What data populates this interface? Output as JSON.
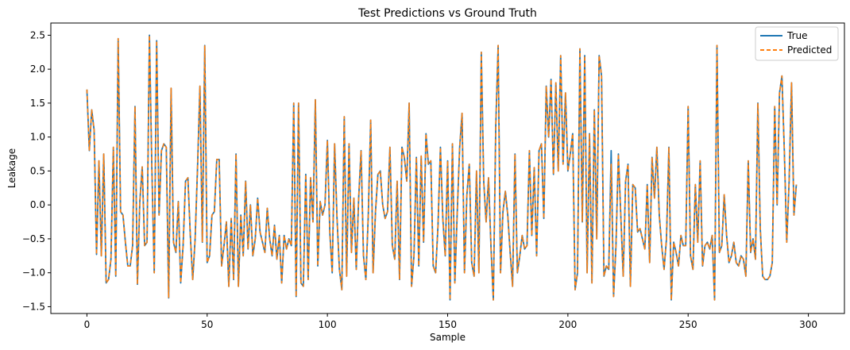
{
  "chart_data": {
    "type": "line",
    "title": "Test Predictions vs Ground Truth",
    "xlabel": "Sample",
    "ylabel": "Leakage",
    "xlim": [
      -15,
      315
    ],
    "ylim": [
      -1.6,
      2.68
    ],
    "x_ticks": [
      0,
      50,
      100,
      150,
      200,
      250,
      300
    ],
    "y_ticks": [
      -1.5,
      -1.0,
      -0.5,
      0.0,
      0.5,
      1.0,
      1.5,
      2.0,
      2.5
    ],
    "x_tick_labels": [
      "0",
      "50",
      "100",
      "150",
      "200",
      "250",
      "300"
    ],
    "y_tick_labels": [
      "−1.5",
      "−1.0",
      "−0.5",
      "0.0",
      "0.5",
      "1.0",
      "1.5",
      "2.0",
      "2.5"
    ],
    "grid": false,
    "legend_position": "top-right",
    "colors": {
      "true": "#1f77b4",
      "predicted": "#ff7f0e"
    },
    "series": [
      {
        "name": "True",
        "style": "solid",
        "values": [
          1.7,
          0.8,
          1.4,
          1.1,
          -0.73,
          0.65,
          -0.75,
          0.75,
          -1.15,
          -1.1,
          -0.8,
          0.85,
          -1.05,
          2.45,
          -0.1,
          -0.15,
          -0.55,
          -0.9,
          -0.9,
          -0.6,
          1.45,
          -1.17,
          0.05,
          0.56,
          -0.6,
          -0.55,
          2.5,
          0.55,
          -1.0,
          2.42,
          -0.15,
          0.8,
          0.9,
          0.85,
          -1.37,
          1.72,
          -0.55,
          -0.7,
          0.05,
          -1.15,
          -0.6,
          0.35,
          0.4,
          -0.45,
          -1.1,
          -0.5,
          0.55,
          1.75,
          -0.55,
          2.35,
          -0.85,
          -0.75,
          -0.15,
          -0.1,
          0.67,
          0.67,
          -0.9,
          -0.6,
          -0.25,
          -1.2,
          -0.2,
          -1.1,
          0.75,
          -1.2,
          -0.15,
          -0.75,
          0.35,
          -0.65,
          0.0,
          -0.75,
          -0.5,
          0.1,
          -0.4,
          -0.55,
          -0.7,
          -0.05,
          -0.5,
          -0.75,
          -0.3,
          -0.8,
          -0.45,
          -1.15,
          -0.45,
          -0.65,
          -0.5,
          -0.6,
          1.5,
          -1.35,
          1.5,
          -1.15,
          -1.2,
          0.45,
          -1.1,
          0.4,
          -0.25,
          1.55,
          -0.9,
          0.05,
          -0.15,
          0.0,
          0.95,
          -0.4,
          -1.0,
          0.9,
          -0.2,
          -0.95,
          -1.25,
          1.3,
          -1.05,
          0.9,
          -0.7,
          0.1,
          -0.95,
          0.1,
          0.8,
          -0.75,
          -1.1,
          -0.15,
          1.25,
          -1.0,
          -0.1,
          0.45,
          0.5,
          0.0,
          -0.2,
          -0.1,
          0.85,
          -0.6,
          -0.8,
          0.35,
          -1.1,
          0.85,
          0.7,
          0.35,
          1.5,
          -1.2,
          -0.75,
          0.7,
          -0.9,
          0.72,
          -0.55,
          1.05,
          0.6,
          0.65,
          -0.9,
          -1.0,
          -0.3,
          0.85,
          -0.2,
          -0.75,
          0.65,
          -1.4,
          0.9,
          -1.15,
          -0.1,
          0.85,
          1.35,
          -1.0,
          0.15,
          0.6,
          -0.85,
          -1.05,
          0.5,
          -1.0,
          2.25,
          0.35,
          -0.25,
          0.4,
          -0.6,
          -1.4,
          1.15,
          2.35,
          -1.0,
          -0.1,
          0.2,
          -0.15,
          -0.7,
          -1.2,
          0.75,
          -1.0,
          -0.75,
          -0.45,
          -0.65,
          -0.6,
          0.8,
          -0.45,
          0.55,
          -0.75,
          0.8,
          0.9,
          -0.2,
          1.75,
          1.0,
          1.85,
          0.45,
          1.8,
          0.5,
          2.2,
          0.6,
          1.65,
          0.5,
          0.75,
          1.05,
          -1.25,
          -1.0,
          2.3,
          -0.25,
          2.2,
          -1.0,
          1.05,
          -1.15,
          1.4,
          -0.5,
          2.2,
          1.9,
          -1.05,
          -0.9,
          -0.95,
          0.8,
          -1.35,
          -0.6,
          0.75,
          -0.15,
          -1.05,
          0.35,
          0.6,
          -1.2,
          0.3,
          0.25,
          -0.4,
          -0.35,
          -0.5,
          -0.65,
          0.3,
          -0.85,
          0.7,
          0.1,
          0.85,
          -0.15,
          -0.6,
          -0.95,
          -0.5,
          0.85,
          -1.4,
          -0.55,
          -0.7,
          -0.9,
          -0.45,
          -0.6,
          -0.6,
          1.45,
          -0.75,
          -0.95,
          0.3,
          -0.55,
          0.65,
          -0.9,
          -0.6,
          -0.55,
          -0.65,
          -0.45,
          -1.4,
          2.35,
          -0.7,
          -0.6,
          0.15,
          -0.45,
          -0.85,
          -0.75,
          -0.55,
          -0.85,
          -0.9,
          -0.75,
          -0.8,
          -1.05,
          0.65,
          -0.7,
          -0.5,
          -0.8,
          1.5,
          -0.35,
          -1.05,
          -1.1,
          -1.1,
          -1.05,
          -0.85,
          1.45,
          0.0,
          1.65,
          1.9,
          0.8,
          -0.55,
          0.35,
          1.8,
          -0.15,
          0.3
        ]
      },
      {
        "name": "Predicted",
        "style": "dashed",
        "values": [
          1.7,
          0.8,
          1.4,
          1.1,
          -0.73,
          0.65,
          -0.75,
          0.75,
          -1.15,
          -1.1,
          -0.8,
          0.85,
          -1.05,
          2.45,
          -0.1,
          -0.15,
          -0.55,
          -0.9,
          -0.9,
          -0.6,
          1.45,
          -1.17,
          0.05,
          0.56,
          -0.6,
          -0.55,
          2.5,
          0.55,
          -1.0,
          2.42,
          -0.15,
          0.8,
          0.9,
          0.85,
          -1.37,
          1.72,
          -0.55,
          -0.7,
          0.05,
          -1.15,
          -0.6,
          0.35,
          0.4,
          -0.45,
          -1.1,
          -0.5,
          0.55,
          1.75,
          -0.55,
          2.35,
          -0.85,
          -0.75,
          -0.15,
          -0.1,
          0.67,
          0.67,
          -0.9,
          -0.6,
          -0.25,
          -1.2,
          -0.2,
          -1.1,
          0.75,
          -1.2,
          -0.15,
          -0.75,
          0.35,
          -0.65,
          0.0,
          -0.75,
          -0.5,
          0.1,
          -0.4,
          -0.55,
          -0.7,
          -0.05,
          -0.5,
          -0.75,
          -0.3,
          -0.8,
          -0.45,
          -1.15,
          -0.45,
          -0.65,
          -0.5,
          -0.6,
          1.5,
          -1.35,
          1.5,
          -1.15,
          -1.2,
          0.45,
          -1.1,
          0.4,
          -0.25,
          1.55,
          -0.9,
          0.05,
          -0.15,
          0.0,
          0.95,
          -0.4,
          -1.0,
          0.9,
          -0.2,
          -0.95,
          -1.25,
          1.3,
          -1.05,
          0.9,
          -0.7,
          0.1,
          -0.95,
          0.1,
          0.8,
          -0.75,
          -1.1,
          -0.15,
          1.25,
          -1.0,
          -0.1,
          0.45,
          0.5,
          0.0,
          -0.2,
          -0.1,
          0.85,
          -0.6,
          -0.8,
          0.35,
          -1.1,
          0.85,
          0.7,
          0.35,
          1.5,
          -1.2,
          -0.75,
          0.7,
          -0.9,
          0.72,
          -0.55,
          1.05,
          0.6,
          0.65,
          -0.9,
          -1.0,
          -0.3,
          0.85,
          -0.2,
          -0.75,
          0.65,
          -1.4,
          0.9,
          -1.15,
          -0.1,
          0.85,
          1.35,
          -1.0,
          0.15,
          0.6,
          -0.85,
          -1.05,
          0.5,
          -1.0,
          2.25,
          0.35,
          -0.25,
          0.4,
          -0.6,
          -1.4,
          1.15,
          2.35,
          -1.0,
          -0.1,
          0.2,
          -0.15,
          -0.7,
          -1.2,
          0.75,
          -1.0,
          -0.75,
          -0.45,
          -0.65,
          -0.6,
          0.8,
          -0.45,
          0.55,
          -0.75,
          0.8,
          0.9,
          -0.2,
          1.75,
          1.0,
          1.85,
          0.45,
          1.8,
          0.5,
          2.2,
          0.6,
          1.65,
          0.5,
          0.75,
          1.05,
          -1.25,
          -1.0,
          2.3,
          -0.25,
          2.2,
          -1.0,
          1.05,
          -1.15,
          1.4,
          -0.5,
          2.2,
          1.9,
          -1.05,
          -0.9,
          -0.95,
          0.6,
          -1.35,
          -0.6,
          0.75,
          -0.15,
          -1.05,
          0.35,
          0.6,
          -1.2,
          0.3,
          0.25,
          -0.4,
          -0.35,
          -0.5,
          -0.65,
          0.3,
          -0.85,
          0.7,
          0.1,
          0.85,
          -0.15,
          -0.6,
          -0.95,
          -0.5,
          0.85,
          -1.4,
          -0.55,
          -0.7,
          -0.9,
          -0.45,
          -0.6,
          -0.6,
          1.45,
          -0.75,
          -0.95,
          0.3,
          -0.55,
          0.65,
          -0.9,
          -0.6,
          -0.55,
          -0.65,
          -0.45,
          -1.4,
          2.35,
          -0.7,
          -0.6,
          0.15,
          -0.45,
          -0.85,
          -0.75,
          -0.55,
          -0.85,
          -0.9,
          -0.75,
          -0.8,
          -1.05,
          0.65,
          -0.7,
          -0.5,
          -0.8,
          1.5,
          -0.35,
          -1.05,
          -1.1,
          -1.1,
          -1.05,
          -0.85,
          1.45,
          0.0,
          1.65,
          1.9,
          0.8,
          -0.55,
          0.35,
          1.8,
          -0.15,
          0.3
        ]
      }
    ]
  }
}
